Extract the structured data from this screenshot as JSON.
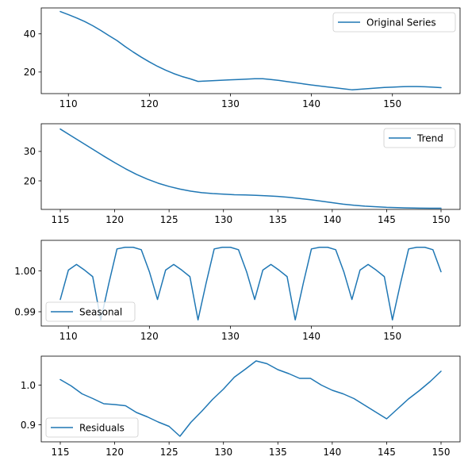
{
  "chart_data": [
    {
      "type": "line",
      "panel": "original",
      "xlim": [
        106.65,
        158.35
      ],
      "ylim": [
        8.7,
        53.6
      ],
      "xticks": [
        110,
        120,
        130,
        140,
        150
      ],
      "yticks": [
        20,
        40
      ],
      "legend_placement": "upper right",
      "grid": false,
      "series": [
        {
          "name": "Original Series",
          "color": "#1f77b4",
          "x": [
            109,
            110,
            111,
            112,
            113,
            114,
            115,
            116,
            117,
            118,
            119,
            120,
            121,
            122,
            123,
            124,
            125,
            126,
            127,
            128,
            129,
            130,
            131,
            132,
            133,
            134,
            135,
            136,
            137,
            138,
            139,
            140,
            141,
            142,
            143,
            144,
            145,
            146,
            147,
            148,
            149,
            150,
            151,
            152,
            153,
            154,
            155,
            156
          ],
          "y": [
            51.7,
            50.1,
            48.4,
            46.5,
            44.3,
            41.8,
            39.1,
            36.5,
            33.4,
            30.5,
            27.8,
            25.3,
            23.0,
            21.0,
            19.2,
            17.7,
            16.5,
            15.1,
            15.3,
            15.5,
            15.7,
            15.9,
            16.1,
            16.3,
            16.5,
            16.5,
            16.1,
            15.6,
            15.0,
            14.4,
            13.8,
            13.2,
            12.7,
            12.2,
            11.7,
            11.2,
            10.7,
            11.0,
            11.3,
            11.6,
            11.9,
            12.1,
            12.3,
            12.4,
            12.4,
            12.3,
            12.1,
            11.8
          ]
        }
      ]
    },
    {
      "type": "line",
      "panel": "trend",
      "xlim": [
        113.25,
        151.75
      ],
      "ylim": [
        10.3,
        39.4
      ],
      "xticks": [
        115,
        120,
        125,
        130,
        135,
        140,
        145,
        150
      ],
      "yticks": [
        20,
        30
      ],
      "legend_placement": "upper right",
      "grid": false,
      "series": [
        {
          "name": "Trend",
          "color": "#1f77b4",
          "x": [
            115,
            116,
            117,
            118,
            119,
            120,
            121,
            122,
            123,
            124,
            125,
            126,
            127,
            128,
            129,
            130,
            131,
            132,
            133,
            134,
            135,
            136,
            137,
            138,
            139,
            140,
            141,
            142,
            143,
            144,
            145,
            146,
            147,
            148,
            149,
            150
          ],
          "y": [
            37.6,
            35.3,
            33.0,
            30.7,
            28.4,
            26.2,
            24.1,
            22.2,
            20.6,
            19.2,
            18.1,
            17.2,
            16.5,
            16.0,
            15.7,
            15.5,
            15.3,
            15.2,
            15.1,
            14.9,
            14.7,
            14.4,
            14.0,
            13.6,
            13.1,
            12.6,
            12.1,
            11.7,
            11.4,
            11.2,
            11.0,
            10.9,
            10.8,
            10.75,
            10.7,
            10.7
          ]
        }
      ]
    },
    {
      "type": "line",
      "panel": "seasonal",
      "xlim": [
        106.65,
        158.35
      ],
      "ylim": [
        0.9865,
        1.0075
      ],
      "xticks": [
        110,
        120,
        130,
        140,
        150
      ],
      "yticks": [
        0.99,
        1.0
      ],
      "ytick_labels": [
        "0.99",
        "1.00"
      ],
      "legend_placement": "lower left",
      "grid": false,
      "series": [
        {
          "name": "Seasonal",
          "color": "#1f77b4",
          "x": [
            109,
            110,
            111,
            112,
            113,
            114,
            115,
            116,
            117,
            118,
            119,
            120,
            121,
            122,
            123,
            124,
            125,
            126,
            127,
            128,
            129,
            130,
            131,
            132,
            133,
            134,
            135,
            136,
            137,
            138,
            139,
            140,
            141,
            142,
            143,
            144,
            145,
            146,
            147,
            148,
            149,
            150,
            151,
            152,
            153,
            154,
            155,
            156
          ],
          "y": [
            0.993,
            1.0002,
            1.0016,
            1.0002,
            0.9986,
            0.988,
            0.997,
            1.0054,
            1.0058,
            1.0058,
            1.0052,
            0.9998,
            0.993,
            1.0002,
            1.0016,
            1.0002,
            0.9986,
            0.988,
            0.997,
            1.0054,
            1.0058,
            1.0058,
            1.0052,
            0.9998,
            0.993,
            1.0002,
            1.0016,
            1.0002,
            0.9986,
            0.988,
            0.997,
            1.0054,
            1.0058,
            1.0058,
            1.0052,
            0.9998,
            0.993,
            1.0002,
            1.0016,
            1.0002,
            0.9986,
            0.988,
            0.997,
            1.0054,
            1.0058,
            1.0058,
            1.0052,
            0.9998
          ]
        }
      ]
    },
    {
      "type": "line",
      "panel": "residuals",
      "xlim": [
        113.25,
        151.75
      ],
      "ylim": [
        0.857,
        1.073
      ],
      "xticks": [
        115,
        120,
        125,
        130,
        135,
        140,
        145,
        150
      ],
      "yticks": [
        0.9,
        1.0
      ],
      "ytick_labels": [
        "0.9",
        "1.0"
      ],
      "legend_placement": "lower left",
      "grid": false,
      "series": [
        {
          "name": "Residuals",
          "color": "#1f77b4",
          "x": [
            115,
            116,
            117,
            118,
            119,
            120,
            121,
            122,
            123,
            124,
            125,
            126,
            127,
            128,
            129,
            130,
            131,
            132,
            133,
            134,
            135,
            136,
            137,
            138,
            139,
            140,
            141,
            142,
            143,
            144,
            145,
            146,
            147,
            148,
            149,
            150
          ],
          "y": [
            1.014,
            0.998,
            0.978,
            0.966,
            0.953,
            0.951,
            0.948,
            0.931,
            0.92,
            0.907,
            0.896,
            0.871,
            0.906,
            0.934,
            0.964,
            0.99,
            1.02,
            1.04,
            1.061,
            1.054,
            1.039,
            1.029,
            1.017,
            1.017,
            1.0,
            0.987,
            0.978,
            0.966,
            0.949,
            0.932,
            0.915,
            0.94,
            0.965,
            0.986,
            1.009,
            1.035
          ]
        }
      ]
    }
  ]
}
